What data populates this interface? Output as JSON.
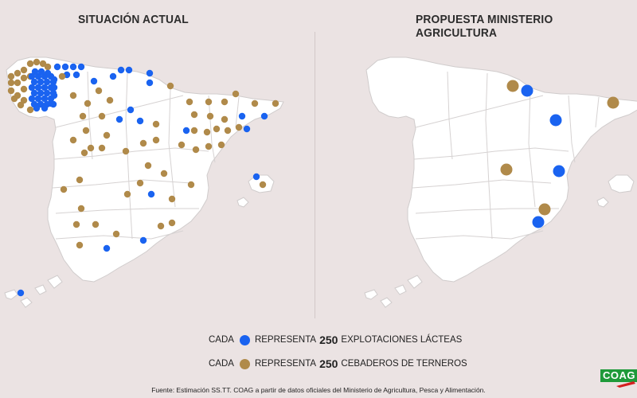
{
  "titles": {
    "left": "SITUACIÓN ACTUAL",
    "right": "PROPUESTA MINISTERIO AGRICULTURA"
  },
  "colors": {
    "background": "#ebe3e3",
    "land": "#ffffff",
    "border": "#cccccc",
    "dairy": "#1a63f0",
    "fattening": "#b08a4a"
  },
  "legend": [
    {
      "prefix": "CADA",
      "verb": "REPRESENTA",
      "number": "250",
      "suffix": "EXPLOTACIONES LÁCTEAS",
      "color_key": "dairy"
    },
    {
      "prefix": "CADA",
      "verb": "REPRESENTA",
      "number": "250",
      "suffix": "CEBADEROS DE TERNEROS",
      "color_key": "fattening"
    }
  ],
  "source": "Fuente: Estimación SS.TT. COAG a partir de datos oficiales del Ministerio de Agricultura, Pesca y Alimentación.",
  "logo": {
    "text": "COAG"
  }
}
